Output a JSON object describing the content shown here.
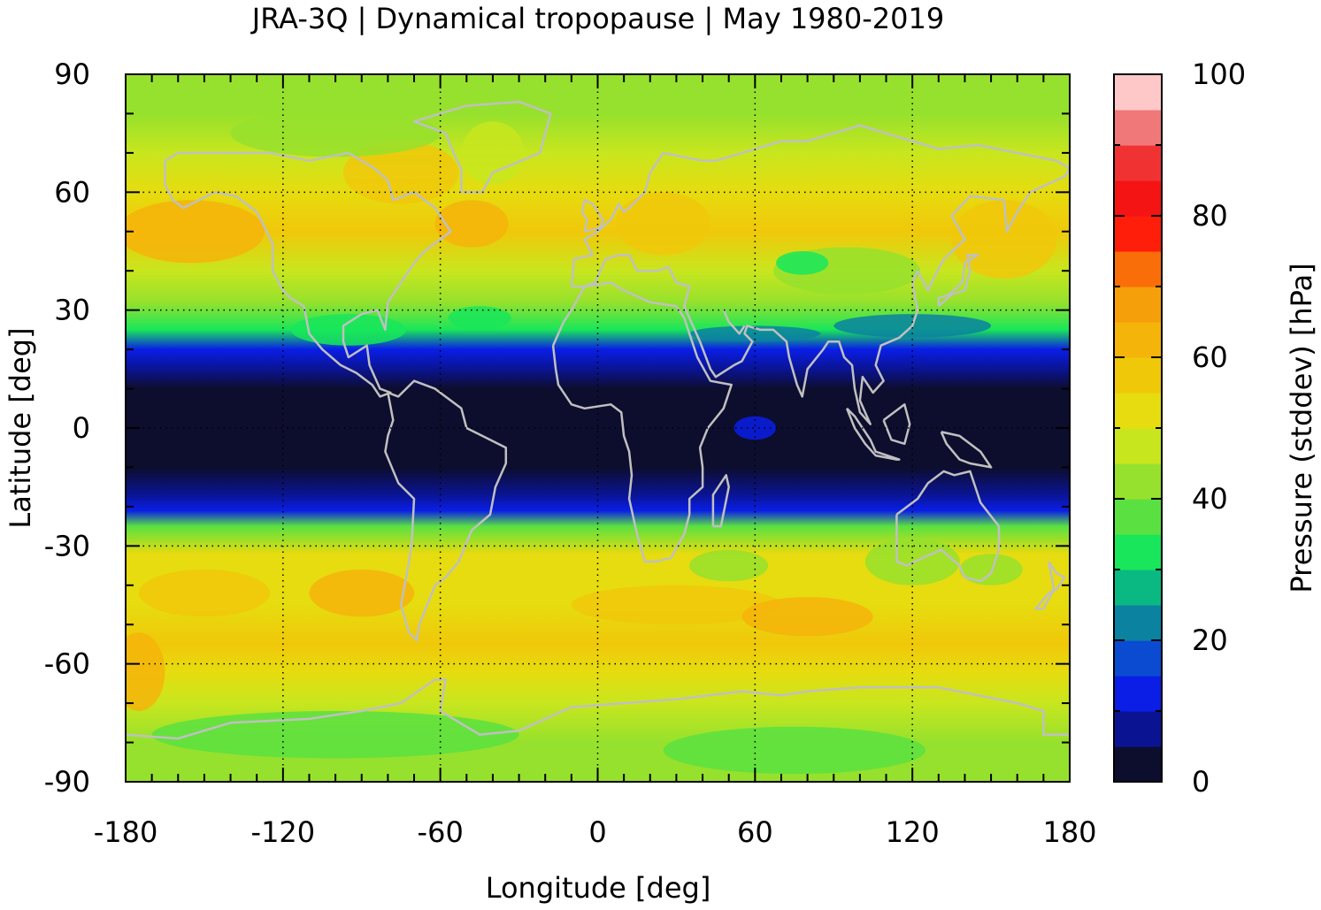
{
  "chart_data": {
    "type": "heatmap",
    "title": "JRA-3Q | Dynamical tropopause | May 1980-2019",
    "xlabel": "Longitude [deg]",
    "ylabel": "Latitude [deg]",
    "colorbar_label": "Pressure (stddev) [hPa]",
    "xlim": [
      -180,
      180
    ],
    "ylim": [
      -90,
      90
    ],
    "x_ticks": [
      -180,
      -120,
      -60,
      0,
      60,
      120,
      180
    ],
    "y_ticks": [
      90,
      60,
      30,
      0,
      -30,
      -60,
      -90
    ],
    "colorbar_range": [
      0,
      100
    ],
    "colorbar_ticks": [
      0,
      20,
      40,
      60,
      80,
      100
    ],
    "grid": "dotted at major ticks",
    "coastlines": true,
    "colorscale": [
      "#0d0d2e",
      "#0a1493",
      "#0a1ee6",
      "#0a4bd2",
      "#0a82a0",
      "#0ab982",
      "#19e65a",
      "#5ae141",
      "#96e12d",
      "#c8e61e",
      "#e6dc0f",
      "#f0c80a",
      "#f5b40a",
      "#f5a00a",
      "#fa6e0a",
      "#ff1e0a",
      "#f51414",
      "#f03232",
      "#f07878",
      "#ffc8c8"
    ],
    "field_profile_by_latitude": [
      {
        "lat": 90,
        "value": 40
      },
      {
        "lat": 80,
        "value": 41
      },
      {
        "lat": 70,
        "value": 48
      },
      {
        "lat": 60,
        "value": 53
      },
      {
        "lat": 50,
        "value": 56
      },
      {
        "lat": 40,
        "value": 48
      },
      {
        "lat": 32,
        "value": 40
      },
      {
        "lat": 25,
        "value": 30
      },
      {
        "lat": 20,
        "value": 14
      },
      {
        "lat": 15,
        "value": 8
      },
      {
        "lat": 10,
        "value": 2
      },
      {
        "lat": 0,
        "value": 1
      },
      {
        "lat": -10,
        "value": 2
      },
      {
        "lat": -17,
        "value": 8
      },
      {
        "lat": -21,
        "value": 14
      },
      {
        "lat": -25,
        "value": 38
      },
      {
        "lat": -32,
        "value": 50
      },
      {
        "lat": -45,
        "value": 53
      },
      {
        "lat": -55,
        "value": 55
      },
      {
        "lat": -62,
        "value": 53
      },
      {
        "lat": -70,
        "value": 47
      },
      {
        "lat": -80,
        "value": 40
      },
      {
        "lat": -90,
        "value": 40
      }
    ]
  }
}
